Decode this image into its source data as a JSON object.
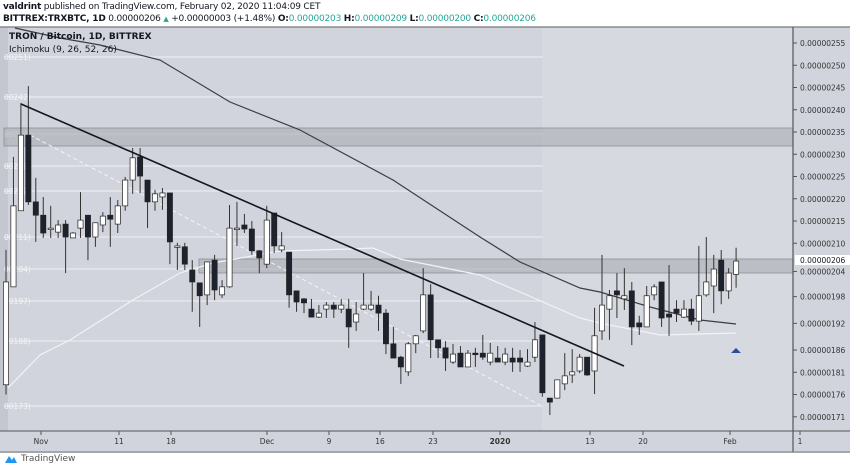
{
  "header": {
    "author": "valdrint",
    "published": "published on TradingView.com, February 02, 2020 11:04:09 CET",
    "symbol": "BITTREX:TRXBTC, 1D",
    "last_price": "0.00000206",
    "change": "+0.00000003 (+1.48%)",
    "o_label": "O:",
    "o_value": "0.00000203",
    "h_label": "H:",
    "h_value": "0.00000209",
    "l_label": "L:",
    "l_value": "0.00000200",
    "c_label": "C:",
    "c_value": "0.00000206"
  },
  "legend": {
    "title": "TRON / Bitcoin, 1D, BITTREX",
    "indicator": "Ichimoku (9, 26, 52, 26)"
  },
  "footer": {
    "brand": "TradingView"
  },
  "colors": {
    "background": "#d1d4dc",
    "up_candle": "#ffffff",
    "down_candle": "#1e222d",
    "trendline": "#131722",
    "zone": "#a9abb2",
    "ma_dark": "#3a3d45",
    "ma_light": "#f2f3f6",
    "arrow": "#2a4d9a",
    "accent": "#26a69a"
  },
  "chart_data": {
    "type": "candlestick",
    "title": "TRON / Bitcoin, 1D, BITTREX",
    "scale": "linear",
    "ylim": [
      1.68e-06,
      2.584e-06
    ],
    "grid": false,
    "y_ticks": [
      "0.00000255",
      "0.00000250",
      "0.00000245",
      "0.00000240",
      "0.00000235",
      "0.00000230",
      "0.00000225",
      "0.00000220",
      "0.00000215",
      "0.00000210",
      "0.00000204",
      "0.00000198",
      "0.00000192",
      "0.00000186",
      "0.00000181",
      "0.00000176",
      "0.00000171"
    ],
    "current_price_label": "0.00000206",
    "x_ticks": [
      "Nov",
      "11",
      "18",
      "Dec",
      "9",
      "16",
      "23",
      "2020",
      "13",
      "20",
      "Feb",
      "1"
    ],
    "level_labels": [
      "00251)",
      "00242)",
      "00234)",
      "00227)",
      "00222)",
      "00211)",
      "00204)",
      "00197)",
      "00188)",
      "00173)"
    ],
    "candles_ohlc": [
      [
        1.782e-06,
        2.085e-06,
        1.76e-06,
        2.013e-06
      ],
      [
        2.002e-06,
        2.294e-06,
        2.002e-06,
        2.184e-06
      ],
      [
        2.173e-06,
        2.415e-06,
        2.173e-06,
        2.343e-06
      ],
      [
        2.343e-06,
        2.453e-06,
        2.186e-06,
        2.193e-06
      ],
      [
        2.193e-06,
        2.247e-06,
        2.103e-06,
        2.163e-06
      ],
      [
        2.163e-06,
        2.204e-06,
        2.112e-06,
        2.123e-06
      ],
      [
        2.132e-06,
        2.184e-06,
        2.112e-06,
        2.134e-06
      ],
      [
        2.125e-06,
        2.152e-06,
        2.112e-06,
        2.141e-06
      ],
      [
        2.143e-06,
        2.152e-06,
        2.033e-06,
        2.114e-06
      ],
      [
        2.112e-06,
        2.125e-06,
        2.112e-06,
        2.123e-06
      ],
      [
        2.134e-06,
        2.215e-06,
        2.112e-06,
        2.152e-06
      ],
      [
        2.163e-06,
        2.163e-06,
        2.062e-06,
        2.114e-06
      ],
      [
        2.114e-06,
        2.146e-06,
        2.092e-06,
        2.146e-06
      ],
      [
        2.141e-06,
        2.17e-06,
        2.125e-06,
        2.161e-06
      ],
      [
        2.163e-06,
        2.204e-06,
        2.092e-06,
        2.154e-06
      ],
      [
        2.143e-06,
        2.197e-06,
        2.123e-06,
        2.184e-06
      ],
      [
        2.184e-06,
        2.249e-06,
        2.173e-06,
        2.242e-06
      ],
      [
        2.242e-06,
        2.314e-06,
        2.211e-06,
        2.292e-06
      ],
      [
        2.294e-06,
        2.314e-06,
        2.213e-06,
        2.251e-06
      ],
      [
        2.242e-06,
        2.242e-06,
        2.134e-06,
        2.193e-06
      ],
      [
        2.193e-06,
        2.22e-06,
        2.173e-06,
        2.211e-06
      ],
      [
        2.204e-06,
        2.224e-06,
        2.175e-06,
        2.213e-06
      ],
      [
        2.213e-06,
        2.213e-06,
        2.053e-06,
        2.103e-06
      ],
      [
        2.092e-06,
        2.101e-06,
        2.04e-06,
        2.094e-06
      ],
      [
        2.092e-06,
        2.101e-06,
        2.04e-06,
        2.053e-06
      ],
      [
        2.04e-06,
        2.062e-06,
        1.946e-06,
        2.013e-06
      ],
      [
        2.011e-06,
        2.011e-06,
        1.912e-06,
        1.982e-06
      ],
      [
        1.984e-06,
        2.058e-06,
        1.961e-06,
        2.058e-06
      ],
      [
        2.062e-06,
        2.074e-06,
        1.972e-06,
        1.995e-06
      ],
      [
        1.984e-06,
        2.017e-06,
        1.977e-06,
        2.002e-06
      ],
      [
        2.002e-06,
        2.186e-06,
        2e-06,
        2.134e-06
      ],
      [
        2.132e-06,
        2.193e-06,
        2.094e-06,
        2.134e-06
      ],
      [
        2.141e-06,
        2.166e-06,
        2.123e-06,
        2.132e-06
      ],
      [
        2.132e-06,
        2.15e-06,
        2.074e-06,
        2.083e-06
      ],
      [
        2.083e-06,
        2.085e-06,
        2.033e-06,
        2.067e-06
      ],
      [
        2.053e-06,
        2.184e-06,
        2.044e-06,
        2.152e-06
      ],
      [
        2.168e-06,
        2.168e-06,
        2.078e-06,
        2.094e-06
      ],
      [
        2.085e-06,
        2.125e-06,
        2.08e-06,
        2.094e-06
      ],
      [
        2.08e-06,
        2.08e-06,
        1.955e-06,
        1.984e-06
      ],
      [
        1.993e-06,
        1.993e-06,
        1.946e-06,
        1.968e-06
      ],
      [
        1.975e-06,
        1.977e-06,
        1.943e-06,
        1.966e-06
      ],
      [
        1.952e-06,
        1.975e-06,
        1.934e-06,
        1.934e-06
      ],
      [
        1.934e-06,
        1.961e-06,
        1.932e-06,
        1.943e-06
      ],
      [
        1.952e-06,
        1.968e-06,
        1.932e-06,
        1.961e-06
      ],
      [
        1.961e-06,
        1.968e-06,
        1.932e-06,
        1.952e-06
      ],
      [
        1.952e-06,
        1.975e-06,
        1.943e-06,
        1.961e-06
      ],
      [
        1.952e-06,
        1.975e-06,
        1.865e-06,
        1.912e-06
      ],
      [
        1.923e-06,
        1.968e-06,
        1.903e-06,
        1.941e-06
      ],
      [
        1.952e-06,
        2.033e-06,
        1.95e-06,
        1.961e-06
      ],
      [
        1.952e-06,
        1.993e-06,
        1.948e-06,
        1.961e-06
      ],
      [
        1.961e-06,
        1.982e-06,
        1.903e-06,
        1.943e-06
      ],
      [
        1.943e-06,
        1.952e-06,
        1.851e-06,
        1.874e-06
      ],
      [
        1.874e-06,
        1.912e-06,
        1.842e-06,
        1.842e-06
      ],
      [
        1.844e-06,
        1.847e-06,
        1.784e-06,
        1.822e-06
      ],
      [
        1.811e-06,
        1.878e-06,
        1.802e-06,
        1.874e-06
      ],
      [
        1.874e-06,
        1.894e-06,
        1.853e-06,
        1.892e-06
      ],
      [
        1.903e-06,
        2.044e-06,
        1.898e-06,
        1.984e-06
      ],
      [
        1.984e-06,
        2.008e-06,
        1.842e-06,
        1.883e-06
      ],
      [
        1.883e-06,
        1.883e-06,
        1.842e-06,
        1.865e-06
      ],
      [
        1.865e-06,
        1.88e-06,
        1.813e-06,
        1.842e-06
      ],
      [
        1.833e-06,
        1.874e-06,
        1.829e-06,
        1.851e-06
      ],
      [
        1.853e-06,
        1.869e-06,
        1.822e-06,
        1.822e-06
      ],
      [
        1.822e-06,
        1.86e-06,
        1.822e-06,
        1.853e-06
      ],
      [
        1.853e-06,
        1.865e-06,
        1.822e-06,
        1.852e-06
      ],
      [
        1.853e-06,
        1.894e-06,
        1.838e-06,
        1.844e-06
      ],
      [
        1.833e-06,
        1.876e-06,
        1.826e-06,
        1.853e-06
      ],
      [
        1.842e-06,
        1.869e-06,
        1.833e-06,
        1.833e-06
      ],
      [
        1.833e-06,
        1.865e-06,
        1.826e-06,
        1.851e-06
      ],
      [
        1.842e-06,
        1.865e-06,
        1.811e-06,
        1.833e-06
      ],
      [
        1.842e-06,
        1.86e-06,
        1.811e-06,
        1.833e-06
      ],
      [
        1.824e-06,
        1.862e-06,
        1.822e-06,
        1.833e-06
      ],
      [
        1.844e-06,
        1.923e-06,
        1.833e-06,
        1.883e-06
      ],
      [
        1.894e-06,
        1.894e-06,
        1.755e-06,
        1.764e-06
      ],
      [
        1.752e-06,
        1.752e-06,
        1.714e-06,
        1.743e-06
      ],
      [
        1.752e-06,
        1.793e-06,
        1.752e-06,
        1.793e-06
      ],
      [
        1.784e-06,
        1.853e-06,
        1.77e-06,
        1.802e-06
      ],
      [
        1.804e-06,
        1.862e-06,
        1.786e-06,
        1.811e-06
      ],
      [
        1.813e-06,
        1.851e-06,
        1.808e-06,
        1.844e-06
      ],
      [
        1.844e-06,
        1.844e-06,
        1.802e-06,
        1.804e-06
      ],
      [
        1.813e-06,
        1.955e-06,
        1.761e-06,
        1.892e-06
      ],
      [
        1.903e-06,
        2.074e-06,
        1.883e-06,
        1.961e-06
      ],
      [
        1.952e-06,
        1.995e-06,
        1.883e-06,
        1.982e-06
      ],
      [
        1.993e-06,
        2.033e-06,
        1.932e-06,
        1.984e-06
      ],
      [
        1.975e-06,
        2.044e-06,
        1.95e-06,
        1.982e-06
      ],
      [
        1.993e-06,
        2.013e-06,
        1.871e-06,
        1.912e-06
      ],
      [
        1.921e-06,
        1.937e-06,
        1.894e-06,
        1.912e-06
      ],
      [
        1.912e-06,
        2.004e-06,
        1.912e-06,
        1.982e-06
      ],
      [
        1.984e-06,
        2.008e-06,
        1.972e-06,
        2.002e-06
      ],
      [
        2.013e-06,
        2.013e-06,
        1.912e-06,
        1.932e-06
      ],
      [
        1.941e-06,
        2.051e-06,
        1.892e-06,
        1.934e-06
      ],
      [
        1.952e-06,
        1.972e-06,
        1.923e-06,
        1.943e-06
      ],
      [
        1.934e-06,
        1.972e-06,
        1.932e-06,
        1.952e-06
      ],
      [
        1.952e-06,
        1.975e-06,
        1.916e-06,
        1.925e-06
      ],
      [
        1.925e-06,
        2.094e-06,
        1.903e-06,
        1.982e-06
      ],
      [
        1.984e-06,
        2.114e-06,
        1.98e-06,
        2.013e-06
      ],
      [
        2.004e-06,
        2.074e-06,
        1.943e-06,
        2.042e-06
      ],
      [
        2.062e-06,
        2.085e-06,
        1.963e-06,
        1.993e-06
      ],
      [
        1.993e-06,
        2.044e-06,
        1.975e-06,
        2.033e-06
      ],
      [
        2.03e-06,
        2.09e-06,
        2e-06,
        2.06e-06
      ]
    ]
  }
}
